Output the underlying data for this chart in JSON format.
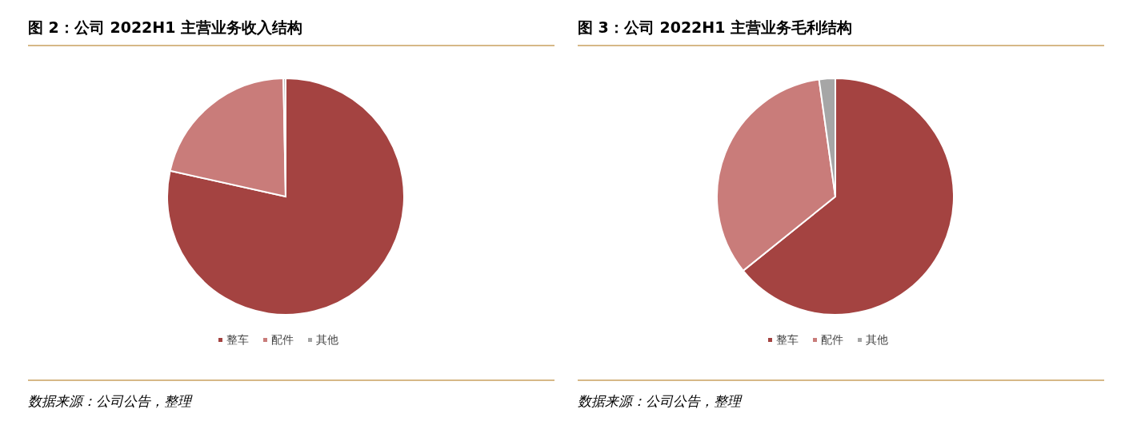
{
  "chart_data": [
    {
      "type": "pie",
      "title": "图 2：公司 2022H1 主营业务收入结构",
      "categories": [
        "整车",
        "配件",
        "其他"
      ],
      "values": [
        78.5,
        21.2,
        0.3
      ],
      "colors": [
        "#a44341",
        "#c97c7a",
        "#a6a6a6"
      ],
      "legend": "bottom",
      "annotations": [
        "数据来源：公司公告，整理"
      ]
    },
    {
      "type": "pie",
      "title": "图 3：公司 2022H1 主营业务毛利结构",
      "categories": [
        "整车",
        "配件",
        "其他"
      ],
      "values": [
        64.2,
        33.6,
        2.2
      ],
      "colors": [
        "#a44341",
        "#c97c7a",
        "#a6a6a6"
      ],
      "legend": "bottom",
      "annotations": [
        "数据来源：公司公告，整理"
      ]
    }
  ]
}
